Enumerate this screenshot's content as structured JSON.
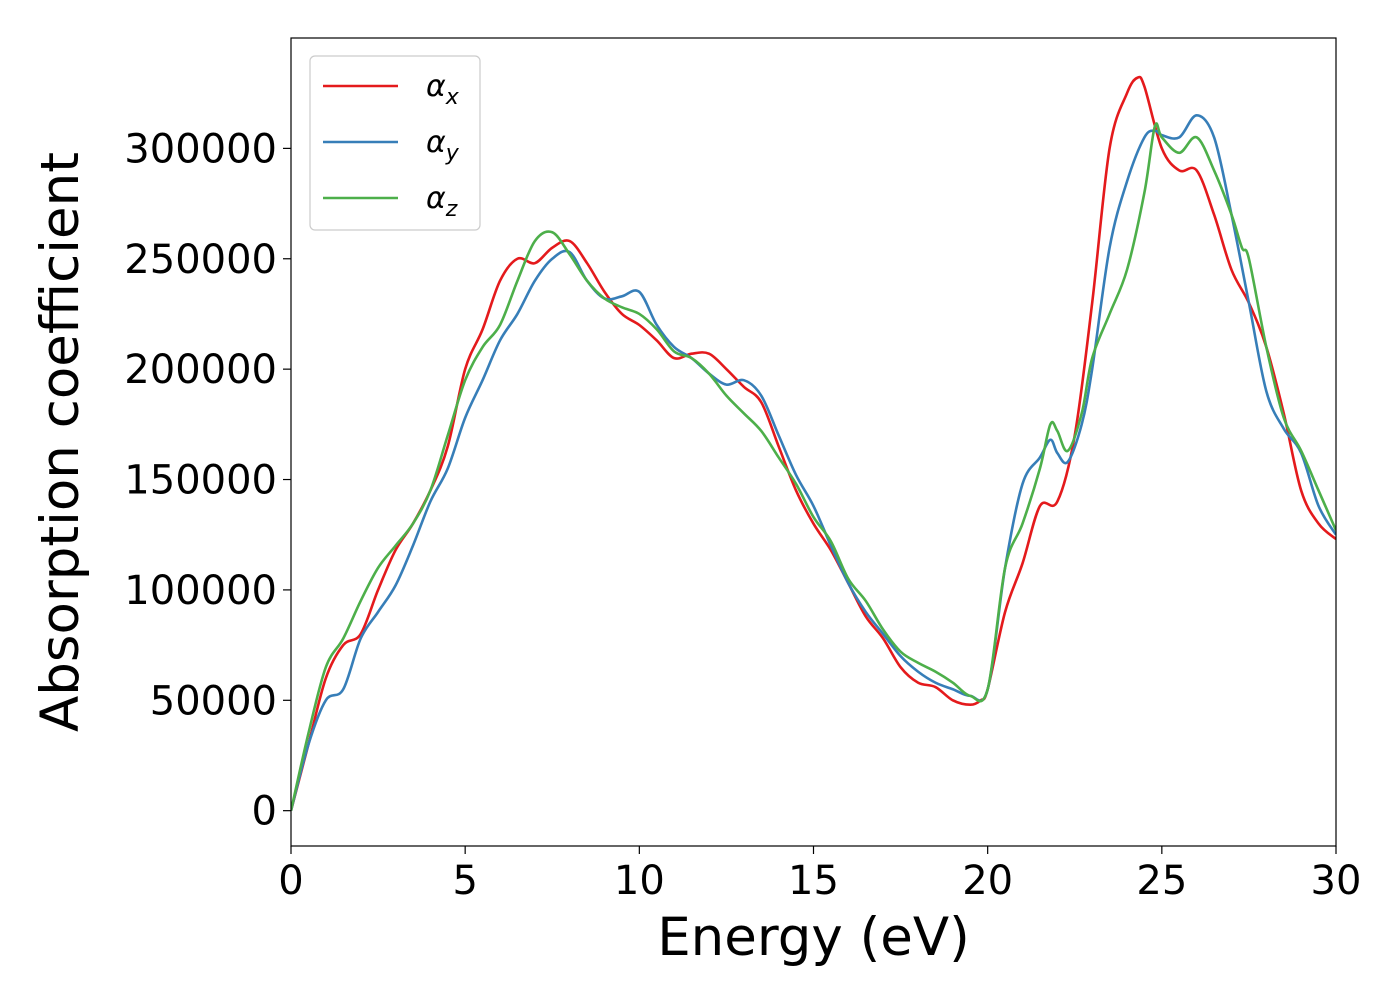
{
  "chart_data": {
    "type": "line",
    "title": "",
    "xlabel": "Energy (eV)",
    "ylabel": "Absorption coefficient",
    "xlim": [
      0,
      30
    ],
    "ylim": [
      -16000,
      350000
    ],
    "xticks": [
      0,
      5,
      10,
      15,
      20,
      25,
      30
    ],
    "yticks": [
      0,
      50000,
      100000,
      150000,
      200000,
      250000,
      300000
    ],
    "grid": false,
    "legend": "upper-left",
    "series": [
      {
        "name": "α",
        "subscript": "x",
        "color": "#e41a1c",
        "x": [
          0,
          0.5,
          1.0,
          1.5,
          2.0,
          2.5,
          3.0,
          3.5,
          4.0,
          4.5,
          5.0,
          5.5,
          6.0,
          6.5,
          7.0,
          7.5,
          8.0,
          8.5,
          9.0,
          9.5,
          10.0,
          10.5,
          11.0,
          11.5,
          12.0,
          12.5,
          13.0,
          13.5,
          14.0,
          14.5,
          15.0,
          15.5,
          16.0,
          16.5,
          17.0,
          17.5,
          18.0,
          18.5,
          19.0,
          19.5,
          19.8,
          20.0,
          20.5,
          21.0,
          21.5,
          22.0,
          22.5,
          23.0,
          23.5,
          24.0,
          24.3,
          24.5,
          25.0,
          25.5,
          26.0,
          26.5,
          27.0,
          27.5,
          28.0,
          28.5,
          29.0,
          29.5,
          30.0
        ],
        "y": [
          0,
          30000,
          60000,
          75000,
          80000,
          100000,
          118000,
          130000,
          145000,
          165000,
          200000,
          218000,
          240000,
          250000,
          248000,
          255000,
          258000,
          248000,
          235000,
          225000,
          220000,
          213000,
          205000,
          207000,
          207000,
          200000,
          192000,
          185000,
          165000,
          145000,
          130000,
          118000,
          103000,
          88000,
          78000,
          65000,
          58000,
          56000,
          50000,
          48000,
          50000,
          55000,
          90000,
          112000,
          138000,
          140000,
          170000,
          230000,
          300000,
          325000,
          332000,
          328000,
          300000,
          290000,
          290000,
          270000,
          245000,
          230000,
          210000,
          180000,
          145000,
          130000,
          123000
        ]
      },
      {
        "name": "α",
        "subscript": "y",
        "color": "#377eb8",
        "x": [
          0,
          0.5,
          1.0,
          1.5,
          2.0,
          2.5,
          3.0,
          3.5,
          4.0,
          4.5,
          5.0,
          5.5,
          6.0,
          6.5,
          7.0,
          7.5,
          8.0,
          8.5,
          9.0,
          9.5,
          10.0,
          10.5,
          11.0,
          11.5,
          12.0,
          12.5,
          13.0,
          13.5,
          14.0,
          14.5,
          15.0,
          15.5,
          16.0,
          16.5,
          17.0,
          17.5,
          18.0,
          18.5,
          19.0,
          19.5,
          20.0,
          20.5,
          21.0,
          21.5,
          21.8,
          22.0,
          22.3,
          22.7,
          23.0,
          23.5,
          24.0,
          24.5,
          24.8,
          25.0,
          25.5,
          26.0,
          26.5,
          27.0,
          27.5,
          28.0,
          28.5,
          29.0,
          29.5,
          30.0
        ],
        "y": [
          0,
          30000,
          50000,
          55000,
          78000,
          90000,
          102000,
          120000,
          140000,
          155000,
          178000,
          195000,
          213000,
          225000,
          240000,
          250000,
          253000,
          240000,
          232000,
          233000,
          235000,
          220000,
          210000,
          205000,
          198000,
          193000,
          195000,
          188000,
          170000,
          152000,
          138000,
          120000,
          103000,
          90000,
          80000,
          70000,
          63000,
          58000,
          55000,
          52000,
          55000,
          110000,
          148000,
          160000,
          168000,
          162000,
          158000,
          175000,
          200000,
          255000,
          285000,
          305000,
          308000,
          306000,
          305000,
          315000,
          305000,
          270000,
          230000,
          190000,
          173000,
          162000,
          138000,
          125000
        ]
      },
      {
        "name": "α",
        "subscript": "z",
        "color": "#4daf4a",
        "x": [
          0,
          0.5,
          1.0,
          1.5,
          2.0,
          2.5,
          3.0,
          3.5,
          4.0,
          4.5,
          5.0,
          5.5,
          6.0,
          6.5,
          7.0,
          7.5,
          8.0,
          8.5,
          9.0,
          9.5,
          10.0,
          10.5,
          11.0,
          11.5,
          12.0,
          12.5,
          13.0,
          13.5,
          14.0,
          14.5,
          15.0,
          15.5,
          16.0,
          16.5,
          17.0,
          17.5,
          18.0,
          18.5,
          19.0,
          19.5,
          20.0,
          20.5,
          21.0,
          21.5,
          21.8,
          22.0,
          22.3,
          22.7,
          23.0,
          23.5,
          24.0,
          24.5,
          24.8,
          25.0,
          25.5,
          26.0,
          26.5,
          27.0,
          27.3,
          27.5,
          28.0,
          28.5,
          29.0,
          29.5,
          30.0
        ],
        "y": [
          0,
          35000,
          65000,
          78000,
          95000,
          110000,
          120000,
          130000,
          145000,
          170000,
          195000,
          210000,
          220000,
          240000,
          258000,
          262000,
          252000,
          240000,
          232000,
          228000,
          225000,
          218000,
          208000,
          205000,
          198000,
          188000,
          180000,
          172000,
          160000,
          148000,
          133000,
          122000,
          105000,
          95000,
          82000,
          72000,
          67000,
          63000,
          58000,
          52000,
          55000,
          110000,
          130000,
          155000,
          175000,
          172000,
          163000,
          180000,
          205000,
          225000,
          245000,
          280000,
          310000,
          305000,
          298000,
          305000,
          290000,
          270000,
          255000,
          250000,
          210000,
          178000,
          163000,
          145000,
          127000
        ]
      }
    ]
  }
}
